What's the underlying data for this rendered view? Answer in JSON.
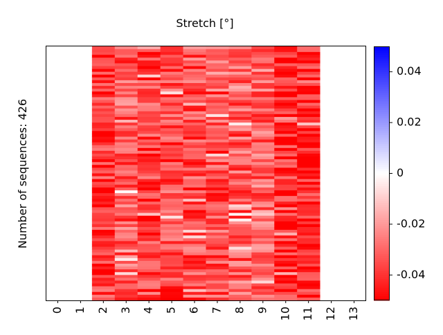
{
  "chart_data": {
    "type": "heatmap",
    "title": "Stretch [°]",
    "ylabel": "Number of sequences: 426",
    "xlabel": "",
    "x_ticks": [
      "0",
      "1",
      "2",
      "3",
      "4",
      "5",
      "6",
      "7",
      "8",
      "9",
      "10",
      "11",
      "12",
      "13"
    ],
    "n_rows": 426,
    "filled_columns": [
      2,
      3,
      4,
      5,
      6,
      7,
      8,
      9,
      10,
      11
    ],
    "empty_columns": [
      0,
      1,
      12,
      13
    ],
    "color_scale": {
      "min": -0.05,
      "max": 0.05,
      "colormap": "bwr",
      "ticks": [
        -0.04,
        -0.02,
        0,
        0.02,
        0.04
      ],
      "tick_labels": [
        "-0.04",
        "-0.02",
        "0",
        "0.02",
        "0.04"
      ],
      "low_color": "#ff0000",
      "mid_color": "#ffffff",
      "high_color": "#0000ff"
    },
    "column_mean_values": {
      "2": -0.04,
      "3": -0.033,
      "4": -0.037,
      "5": -0.036,
      "6": -0.035,
      "7": -0.034,
      "8": -0.032,
      "9": -0.03,
      "10": -0.042,
      "11": -0.043
    }
  }
}
